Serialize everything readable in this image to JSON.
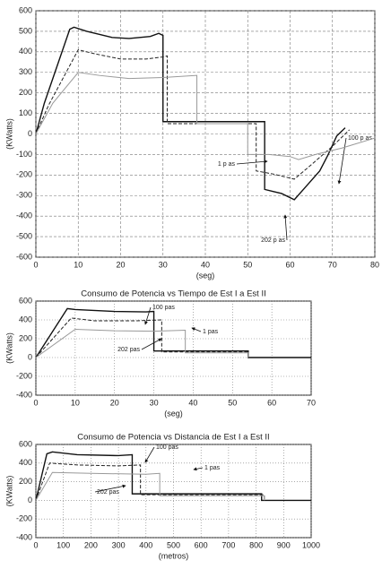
{
  "chart_data": [
    {
      "type": "line",
      "ylabel": "(KWatts)",
      "xlabel": "(seg)",
      "xlim": [
        0,
        80
      ],
      "xticks": [
        0,
        10,
        20,
        30,
        40,
        50,
        60,
        70,
        80
      ],
      "ylim": [
        -600,
        600
      ],
      "yticks": [
        -600,
        -500,
        -400,
        -300,
        -200,
        -100,
        0,
        100,
        200,
        300,
        400,
        500,
        600
      ],
      "grid": "dashed",
      "series": [
        {
          "name": "202 p as",
          "color": "#111111",
          "dash": false,
          "x": [
            0,
            2,
            8,
            9,
            12,
            18,
            22,
            27,
            29,
            30,
            30,
            54,
            54,
            56,
            58,
            61,
            64,
            67,
            69,
            71,
            73
          ],
          "values": [
            0,
            150,
            510,
            520,
            500,
            470,
            465,
            475,
            490,
            480,
            60,
            60,
            -270,
            -280,
            -290,
            -320,
            -250,
            -180,
            -100,
            -10,
            30
          ]
        },
        {
          "name": "100 p as",
          "color": "#222222",
          "dash": true,
          "x": [
            0,
            3,
            10,
            14,
            20,
            26,
            30,
            31,
            31,
            52,
            52,
            56,
            61,
            65,
            70,
            74
          ],
          "values": [
            0,
            140,
            410,
            390,
            365,
            365,
            375,
            380,
            50,
            50,
            -180,
            -195,
            -220,
            -150,
            -60,
            20
          ]
        },
        {
          "name": "1 p as",
          "color": "#999999",
          "dash": false,
          "x": [
            0,
            4,
            10,
            15,
            22,
            30,
            38,
            38,
            50,
            50,
            55,
            60,
            62,
            66,
            72,
            80
          ],
          "values": [
            0,
            150,
            300,
            285,
            270,
            275,
            285,
            50,
            50,
            -100,
            -100,
            -110,
            -125,
            -100,
            -70,
            -20
          ]
        }
      ]
    },
    {
      "type": "line",
      "title": "Consumo de Potencia vs Tiempo de Est I a Est II",
      "ylabel": "(KWatts)",
      "xlabel": "(seg)",
      "xlim": [
        0,
        70
      ],
      "xticks": [
        0,
        10,
        20,
        30,
        40,
        50,
        60,
        70
      ],
      "ylim": [
        -400,
        600
      ],
      "yticks": [
        -400,
        -200,
        0,
        200,
        400,
        600
      ],
      "grid": "dotted",
      "series": [
        {
          "name": "202 pas",
          "color": "#111111",
          "dash": false,
          "x": [
            0,
            8,
            10,
            20,
            28,
            30,
            30,
            54,
            54,
            70
          ],
          "values": [
            0,
            520,
            510,
            490,
            485,
            490,
            70,
            70,
            0,
            0
          ]
        },
        {
          "name": "100 pas",
          "color": "#222222",
          "dash": true,
          "x": [
            0,
            9,
            15,
            25,
            32,
            32,
            54,
            54
          ],
          "values": [
            0,
            420,
            390,
            390,
            400,
            60,
            60,
            0
          ]
        },
        {
          "name": "1 pas",
          "color": "#999999",
          "dash": false,
          "x": [
            0,
            10,
            20,
            30,
            38,
            38,
            54,
            54
          ],
          "values": [
            0,
            300,
            285,
            280,
            290,
            50,
            50,
            0
          ]
        }
      ]
    },
    {
      "type": "line",
      "title": "Consumo de Potencia vs Distancia de Est I a Est II",
      "ylabel": "(KWatts)",
      "xlabel": "(metros)",
      "xlim": [
        0,
        1000
      ],
      "xticks": [
        0,
        100,
        200,
        300,
        400,
        500,
        600,
        700,
        800,
        900,
        1000
      ],
      "ylim": [
        -400,
        600
      ],
      "yticks": [
        -400,
        -200,
        0,
        200,
        400,
        600
      ],
      "grid": "dotted",
      "series": [
        {
          "name": "202 pas",
          "color": "#111111",
          "dash": false,
          "x": [
            0,
            40,
            60,
            150,
            300,
            350,
            350,
            820,
            820,
            1000
          ],
          "values": [
            0,
            500,
            520,
            490,
            480,
            490,
            70,
            70,
            0,
            0
          ]
        },
        {
          "name": "100 pas",
          "color": "#222222",
          "dash": true,
          "x": [
            0,
            50,
            150,
            300,
            380,
            380,
            830,
            830
          ],
          "values": [
            0,
            400,
            380,
            370,
            380,
            60,
            60,
            0
          ]
        },
        {
          "name": "1 pas",
          "color": "#999999",
          "dash": false,
          "x": [
            0,
            60,
            200,
            400,
            450,
            450,
            830,
            830
          ],
          "values": [
            0,
            300,
            290,
            280,
            290,
            50,
            50,
            0
          ]
        }
      ]
    }
  ]
}
